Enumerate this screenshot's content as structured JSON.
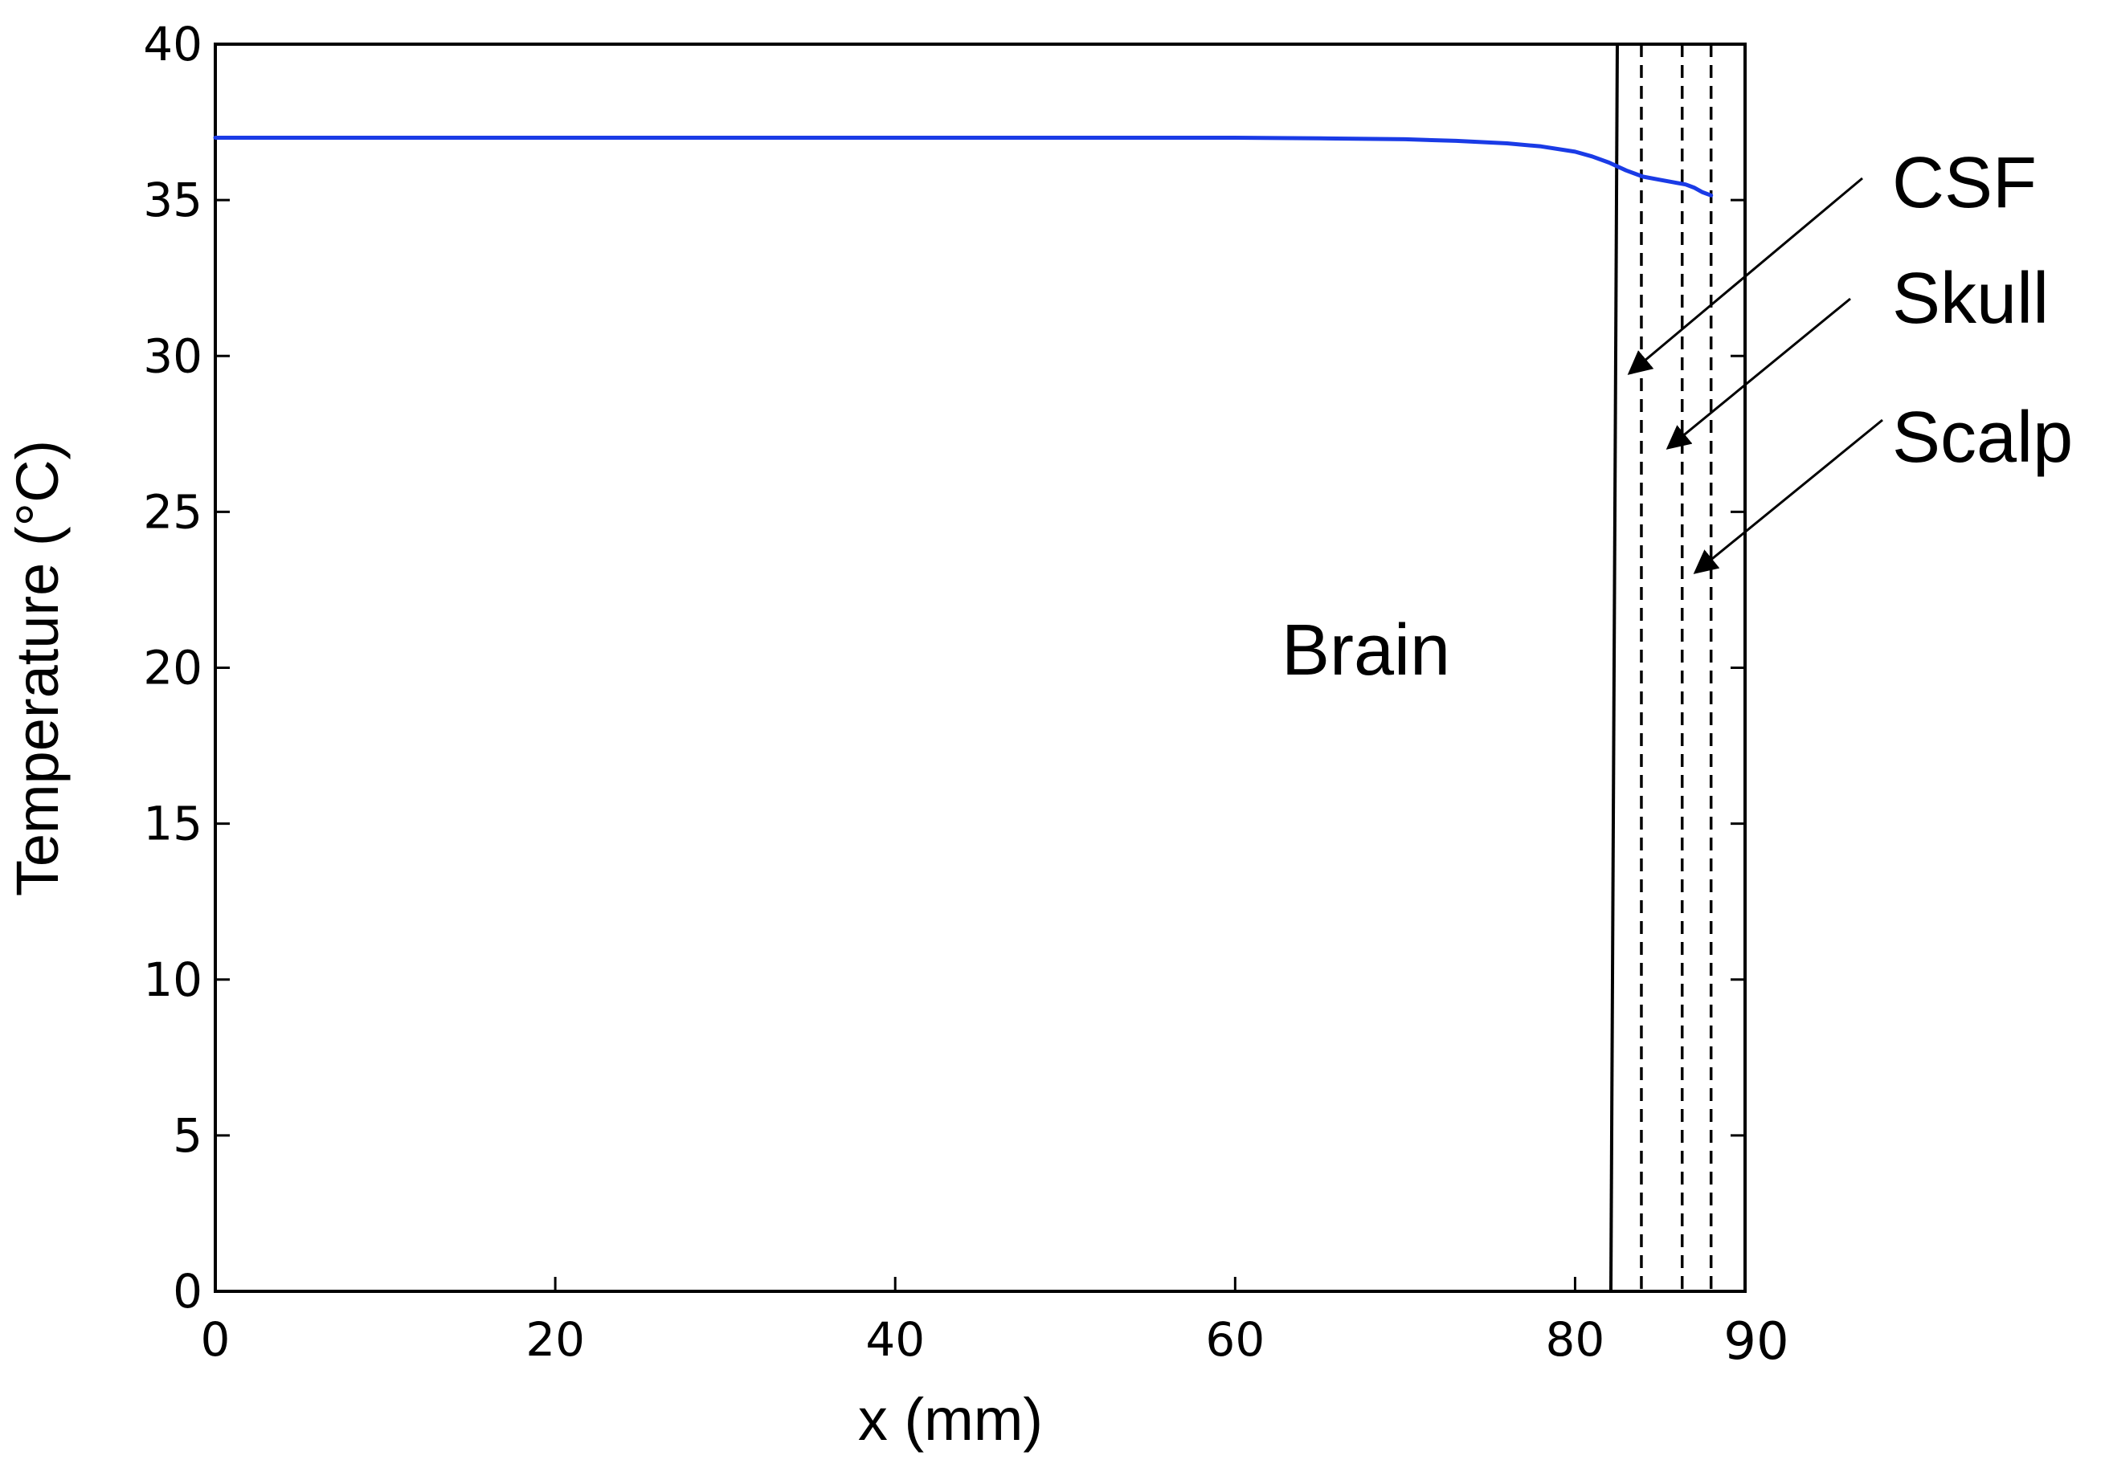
{
  "chart_data": {
    "type": "line",
    "title": "",
    "xlabel": "x (mm)",
    "ylabel": "Temperature (°C)",
    "xlim": [
      0,
      90
    ],
    "ylim": [
      0,
      40
    ],
    "xticks": [
      "0",
      "20",
      "40",
      "60",
      "80",
      "90"
    ],
    "yticks": [
      "0",
      "5",
      "10",
      "15",
      "20",
      "25",
      "30",
      "35",
      "40"
    ],
    "grid": false,
    "legend": "none",
    "series": [
      {
        "color": "#1a3be6",
        "x": [
          0,
          20,
          40,
          60,
          65,
          70,
          73,
          76,
          78,
          80,
          81,
          82,
          83,
          84,
          85,
          86,
          86.5,
          87,
          87.5,
          88
        ],
        "y": [
          37.0,
          37.0,
          37.0,
          37.0,
          36.98,
          36.95,
          36.9,
          36.82,
          36.72,
          36.55,
          36.4,
          36.2,
          35.95,
          35.75,
          35.65,
          35.55,
          35.5,
          35.4,
          35.25,
          35.15
        ]
      }
    ],
    "boundaries": [
      {
        "x": 82.2,
        "style": "solid"
      },
      {
        "x": 83.9,
        "style": "dashed"
      },
      {
        "x": 86.3,
        "style": "dashed"
      },
      {
        "x": 88.0,
        "style": "dashed"
      }
    ],
    "annotations": [
      {
        "label": "Brain"
      },
      {
        "label": "CSF"
      },
      {
        "label": "Skull"
      },
      {
        "label": "Scalp"
      }
    ]
  }
}
